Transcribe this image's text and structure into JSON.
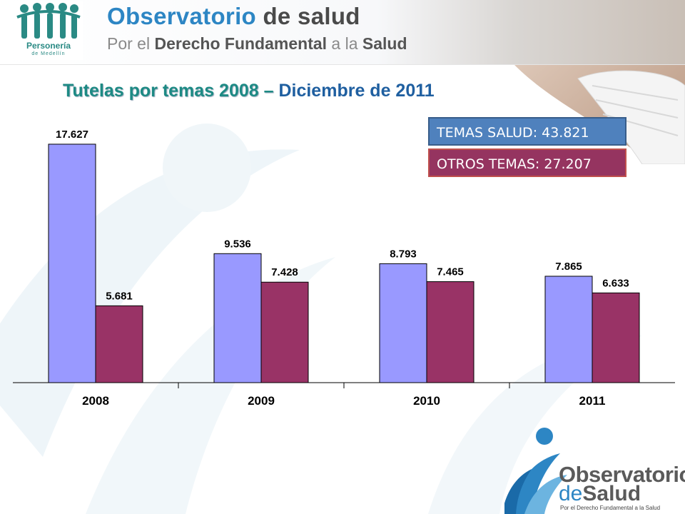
{
  "header": {
    "title_main": "Observatorio",
    "title_rest": "de salud",
    "subtitle_a": "Por el",
    "subtitle_b": "Derecho Fundamental",
    "subtitle_c": "a la",
    "subtitle_d": "Salud",
    "logo_caption": "Personería",
    "logo_sub": "de Medellín"
  },
  "title": {
    "part1": "Tutelas por temas 2008 –",
    "part2": " Diciembre de 2011"
  },
  "summary": {
    "salud": "TEMAS SALUD: 43.821",
    "otros": "OTROS TEMAS: 27.207"
  },
  "footer_logo": {
    "line1": "Observatorio",
    "line2_de": "de",
    "line2_salud": "Salud",
    "line3": "Por el Derecho Fundamental a la Salud"
  },
  "colors": {
    "salud": "#9999ff",
    "otros": "#993366",
    "accent_teal": "#1d8a84",
    "accent_blue": "#2d86c4"
  },
  "chart_data": {
    "type": "bar",
    "categories": [
      "2008",
      "2009",
      "2010",
      "2011"
    ],
    "series": [
      {
        "values": [
          17627,
          9536,
          8793,
          7865
        ],
        "labels": [
          "17.627",
          "9.536",
          "8.793",
          "7.865"
        ],
        "color": "#9999ff"
      },
      {
        "values": [
          5681,
          7428,
          7465,
          6633
        ],
        "labels": [
          "5.681",
          "7.428",
          "7.465",
          "6.633"
        ],
        "color": "#993366"
      }
    ],
    "ylim": [
      0,
      20000
    ],
    "grid": false,
    "legend": "none"
  }
}
